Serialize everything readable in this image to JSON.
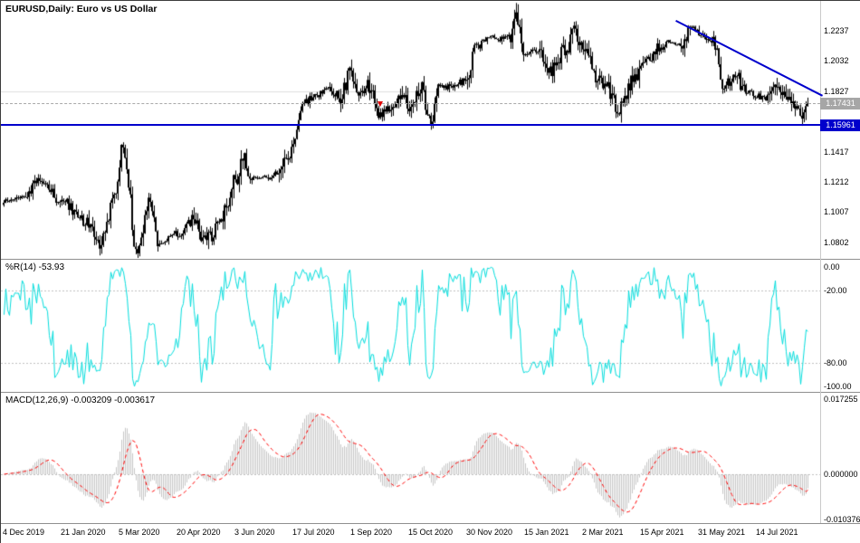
{
  "title": "EURUSD,Daily: Euro vs US Dollar",
  "price_axis": {
    "labels": [
      "1.2237",
      "1.2032",
      "1.1827",
      "1.1417",
      "1.1212",
      "1.1007",
      "1.0802"
    ],
    "bid_tag": "1.17431",
    "hline_tag": "1.15961"
  },
  "wpr_panel": {
    "label": "%R(14) -53.93",
    "axis_labels": [
      "0.00",
      "-20.00",
      "-80.00",
      "-100.00"
    ]
  },
  "macd_panel": {
    "label": "MACD(12,26,9) -0.003209 -0.003617",
    "axis_labels": [
      "0.017255",
      "0.000000",
      "-0.010376"
    ]
  },
  "time_axis": {
    "labels": [
      "4 Dec 2019",
      "21 Jan 2020",
      "5 Mar 2020",
      "20 Apr 2020",
      "3 Jun 2020",
      "17 Jul 2020",
      "1 Sep 2020",
      "15 Oct 2020",
      "30 Nov 2020",
      "15 Jan 2021",
      "2 Mar 2021",
      "15 Apr 2021",
      "31 May 2021",
      "14 Jul 2021"
    ],
    "bars_per_label": 32
  },
  "chart_data": {
    "type": "candlestick",
    "symbol": "EURUSD",
    "period": "Daily",
    "description": "Euro vs US Dollar",
    "bars": 445,
    "price_range": [
      1.069,
      1.244
    ],
    "grid_level": 1.1827,
    "current_bid": 1.17431,
    "horizontal_line": 1.15961,
    "trendline": {
      "from_bar": 373,
      "from_price": 1.2305,
      "to_bar": 453,
      "to_price": 1.1801,
      "color": "#0000CC"
    },
    "arrow_marker": {
      "bar": 208,
      "price": 1.17,
      "color": "#E00000"
    },
    "candle_color": "#000000",
    "x_tick_labels": [
      "4 Dec 2019",
      "21 Jan 2020",
      "5 Mar 2020",
      "20 Apr 2020",
      "3 Jun 2020",
      "17 Jul 2020",
      "1 Sep 2020",
      "15 Oct 2020",
      "30 Nov 2020",
      "15 Jan 2021",
      "2 Mar 2021",
      "15 Apr 2021",
      "31 May 2021",
      "14 Jul 2021"
    ],
    "y_tick_values": [
      1.2237,
      1.2032,
      1.1827,
      1.1417,
      1.1212,
      1.1007,
      1.0802
    ],
    "price_anchors": [
      [
        0,
        1.108
      ],
      [
        12,
        1.112
      ],
      [
        20,
        1.1215
      ],
      [
        32,
        1.1085
      ],
      [
        45,
        1.0945
      ],
      [
        54,
        1.079
      ],
      [
        61,
        1.1135
      ],
      [
        66,
        1.145
      ],
      [
        74,
        1.0705
      ],
      [
        80,
        1.109
      ],
      [
        86,
        1.08
      ],
      [
        96,
        1.086
      ],
      [
        104,
        1.095
      ],
      [
        112,
        1.0815
      ],
      [
        122,
        1.1
      ],
      [
        128,
        1.123
      ],
      [
        132,
        1.137
      ],
      [
        138,
        1.124
      ],
      [
        146,
        1.1245
      ],
      [
        152,
        1.1275
      ],
      [
        160,
        1.144
      ],
      [
        166,
        1.175
      ],
      [
        172,
        1.18
      ],
      [
        180,
        1.184
      ],
      [
        186,
        1.179
      ],
      [
        192,
        1.196
      ],
      [
        197,
        1.182
      ],
      [
        201,
        1.1865
      ],
      [
        208,
        1.167
      ],
      [
        214,
        1.1715
      ],
      [
        220,
        1.181
      ],
      [
        224,
        1.1709
      ],
      [
        230,
        1.186
      ],
      [
        236,
        1.164
      ],
      [
        240,
        1.1875
      ],
      [
        246,
        1.1855
      ],
      [
        252,
        1.189
      ],
      [
        256,
        1.193
      ],
      [
        260,
        1.212
      ],
      [
        268,
        1.22
      ],
      [
        274,
        1.2185
      ],
      [
        280,
        1.2215
      ],
      [
        283,
        1.234
      ],
      [
        288,
        1.208
      ],
      [
        296,
        1.211
      ],
      [
        302,
        1.1965
      ],
      [
        310,
        1.2105
      ],
      [
        316,
        1.224
      ],
      [
        320,
        1.209
      ],
      [
        330,
        1.19
      ],
      [
        340,
        1.172
      ],
      [
        348,
        1.19
      ],
      [
        352,
        1.198
      ],
      [
        362,
        1.212
      ],
      [
        368,
        1.216
      ],
      [
        374,
        1.215
      ],
      [
        380,
        1.225
      ],
      [
        384,
        1.2225
      ],
      [
        392,
        1.217
      ],
      [
        398,
        1.1865
      ],
      [
        404,
        1.193
      ],
      [
        410,
        1.1825
      ],
      [
        416,
        1.1795
      ],
      [
        422,
        1.177
      ],
      [
        428,
        1.187
      ],
      [
        434,
        1.177
      ],
      [
        438,
        1.17
      ],
      [
        441,
        1.1675
      ],
      [
        444,
        1.17431
      ]
    ],
    "indicators": [
      {
        "type": "williams_r",
        "period": 14,
        "current": -53.93,
        "levels": [
          0,
          -20,
          -80,
          -100
        ],
        "color": "#00DCDC"
      },
      {
        "type": "macd",
        "fast": 12,
        "slow": 26,
        "signal": 9,
        "current_macd": -0.003209,
        "current_signal": -0.003617,
        "axis_max": 0.017255,
        "axis_min": -0.010376,
        "histogram_color": "#C6C6C6",
        "signal_color": "#FF0000"
      }
    ]
  }
}
